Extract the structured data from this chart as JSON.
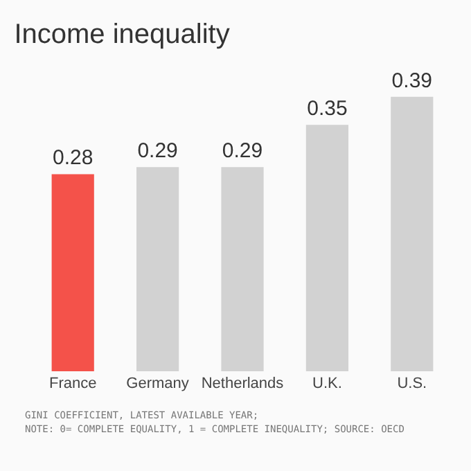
{
  "chart_data": {
    "type": "bar",
    "title": "Income inequality",
    "categories": [
      "France",
      "Germany",
      "Netherlands",
      "U.K.",
      "U.S."
    ],
    "values": [
      0.28,
      0.29,
      0.29,
      0.35,
      0.39
    ],
    "colors": [
      "#f4524a",
      "#d2d2d2",
      "#d2d2d2",
      "#d2d2d2",
      "#d2d2d2"
    ],
    "data_labels": true,
    "annotations": [
      "GINI COEFFICIENT, LATEST AVAILABLE YEAR;",
      "NOTE: 0= COMPLETE EQUALITY, 1 = COMPLETE INEQUALITY; SOURCE: OECD"
    ]
  }
}
